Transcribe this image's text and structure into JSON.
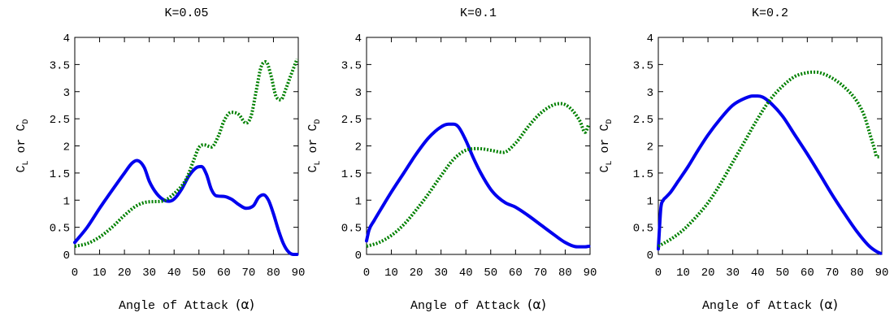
{
  "chart_data": [
    {
      "type": "line",
      "title": "K=0.05",
      "xlabel": "Angle of Attack",
      "xlabel_symbol": "(α)",
      "ylabel_parts": [
        "C",
        "L",
        " or ",
        "C",
        "D"
      ],
      "xlim": [
        0,
        90
      ],
      "ylim": [
        0,
        4
      ],
      "xticks": [
        "0",
        "10",
        "20",
        "30",
        "40",
        "50",
        "60",
        "70",
        "80",
        "90"
      ],
      "yticks": [
        "0",
        "0.5",
        "1",
        "1.5",
        "2",
        "2.5",
        "3",
        "3.5",
        "4"
      ],
      "grid": false,
      "legend": "none",
      "series": [
        {
          "style": "solid",
          "color": "#0000ee",
          "x": [
            0,
            5,
            10,
            15,
            20,
            23,
            25,
            28,
            30,
            33,
            36,
            38,
            40,
            43,
            46,
            49,
            51,
            53,
            55,
            57,
            60,
            63,
            66,
            69,
            72,
            74,
            76,
            78,
            80,
            82,
            84,
            86,
            88,
            89.5
          ],
          "y": [
            0.22,
            0.5,
            0.85,
            1.18,
            1.5,
            1.68,
            1.73,
            1.6,
            1.35,
            1.12,
            1.0,
            0.98,
            1.02,
            1.2,
            1.45,
            1.6,
            1.62,
            1.48,
            1.2,
            1.08,
            1.07,
            1.02,
            0.92,
            0.85,
            0.9,
            1.05,
            1.1,
            1.0,
            0.75,
            0.45,
            0.2,
            0.05,
            0.0,
            0.0
          ]
        },
        {
          "style": "dotted",
          "color": "#008000",
          "x": [
            0,
            5,
            10,
            15,
            20,
            25,
            30,
            35,
            40,
            45,
            48,
            50,
            52,
            55,
            58,
            60,
            63,
            66,
            69,
            71,
            73,
            75,
            77,
            79,
            81,
            83,
            85,
            87,
            89.5
          ],
          "y": [
            0.15,
            0.2,
            0.32,
            0.5,
            0.72,
            0.9,
            0.97,
            0.98,
            1.12,
            1.4,
            1.75,
            1.97,
            2.02,
            1.98,
            2.2,
            2.45,
            2.62,
            2.58,
            2.42,
            2.55,
            3.0,
            3.45,
            3.55,
            3.3,
            2.92,
            2.85,
            3.05,
            3.3,
            3.6
          ]
        }
      ]
    },
    {
      "type": "line",
      "title": "K=0.1",
      "xlabel": "Angle of Attack",
      "xlabel_symbol": "(α)",
      "ylabel_parts": [
        "C",
        "L",
        " or ",
        "C",
        "D"
      ],
      "xlim": [
        0,
        90
      ],
      "ylim": [
        0,
        4
      ],
      "xticks": [
        "0",
        "10",
        "20",
        "30",
        "40",
        "50",
        "60",
        "70",
        "80",
        "90"
      ],
      "yticks": [
        "0",
        "0.5",
        "1",
        "1.5",
        "2",
        "2.5",
        "3",
        "3.5",
        "4"
      ],
      "grid": false,
      "legend": "none",
      "series": [
        {
          "style": "solid",
          "color": "#0000ee",
          "x": [
            0,
            1,
            3,
            6,
            10,
            15,
            20,
            25,
            30,
            33,
            35,
            37,
            40,
            43,
            46,
            50,
            53,
            56,
            60,
            65,
            70,
            75,
            80,
            85,
            88,
            89.5
          ],
          "y": [
            0.25,
            0.45,
            0.62,
            0.85,
            1.15,
            1.5,
            1.85,
            2.15,
            2.35,
            2.4,
            2.4,
            2.35,
            2.1,
            1.78,
            1.5,
            1.2,
            1.05,
            0.95,
            0.87,
            0.72,
            0.55,
            0.38,
            0.22,
            0.14,
            0.14,
            0.15
          ]
        },
        {
          "style": "dotted",
          "color": "#008000",
          "x": [
            0,
            5,
            10,
            15,
            20,
            25,
            30,
            35,
            40,
            45,
            50,
            55,
            60,
            65,
            70,
            75,
            78,
            80,
            83,
            86,
            88,
            89.5
          ],
          "y": [
            0.15,
            0.22,
            0.35,
            0.55,
            0.82,
            1.12,
            1.45,
            1.75,
            1.92,
            1.95,
            1.92,
            1.88,
            2.05,
            2.35,
            2.6,
            2.75,
            2.78,
            2.76,
            2.65,
            2.45,
            2.25,
            2.4
          ]
        }
      ]
    },
    {
      "type": "line",
      "title": "K=0.2",
      "xlabel": "Angle of Attack",
      "xlabel_symbol": "(α)",
      "ylabel_parts": [
        "C",
        "L",
        " or ",
        "C",
        "D"
      ],
      "xlim": [
        0,
        90
      ],
      "ylim": [
        0,
        4
      ],
      "xticks": [
        "0",
        "10",
        "20",
        "30",
        "40",
        "50",
        "60",
        "70",
        "80",
        "90"
      ],
      "yticks": [
        "0",
        "0.5",
        "1",
        "1.5",
        "2",
        "2.5",
        "3",
        "3.5",
        "4"
      ],
      "grid": false,
      "legend": "none",
      "series": [
        {
          "style": "solid",
          "color": "#0000ee",
          "x": [
            0,
            0.5,
            1,
            2,
            3,
            5,
            8,
            12,
            16,
            20,
            25,
            30,
            35,
            38,
            40,
            42,
            45,
            50,
            55,
            60,
            65,
            70,
            75,
            80,
            85,
            88,
            89.5
          ],
          "y": [
            0.1,
            0.5,
            0.85,
            1.0,
            1.05,
            1.15,
            1.35,
            1.62,
            1.92,
            2.2,
            2.5,
            2.75,
            2.88,
            2.92,
            2.92,
            2.9,
            2.8,
            2.55,
            2.2,
            1.85,
            1.48,
            1.1,
            0.75,
            0.42,
            0.15,
            0.05,
            0.02
          ]
        },
        {
          "style": "dotted",
          "color": "#008000",
          "x": [
            0,
            5,
            10,
            15,
            20,
            25,
            30,
            35,
            40,
            45,
            50,
            55,
            60,
            63,
            65,
            70,
            75,
            80,
            83,
            85,
            87,
            88,
            89.5
          ],
          "y": [
            0.15,
            0.28,
            0.45,
            0.68,
            0.95,
            1.3,
            1.7,
            2.1,
            2.5,
            2.85,
            3.1,
            3.28,
            3.35,
            3.36,
            3.35,
            3.25,
            3.08,
            2.82,
            2.55,
            2.25,
            1.95,
            1.8,
            1.8
          ]
        }
      ]
    }
  ]
}
